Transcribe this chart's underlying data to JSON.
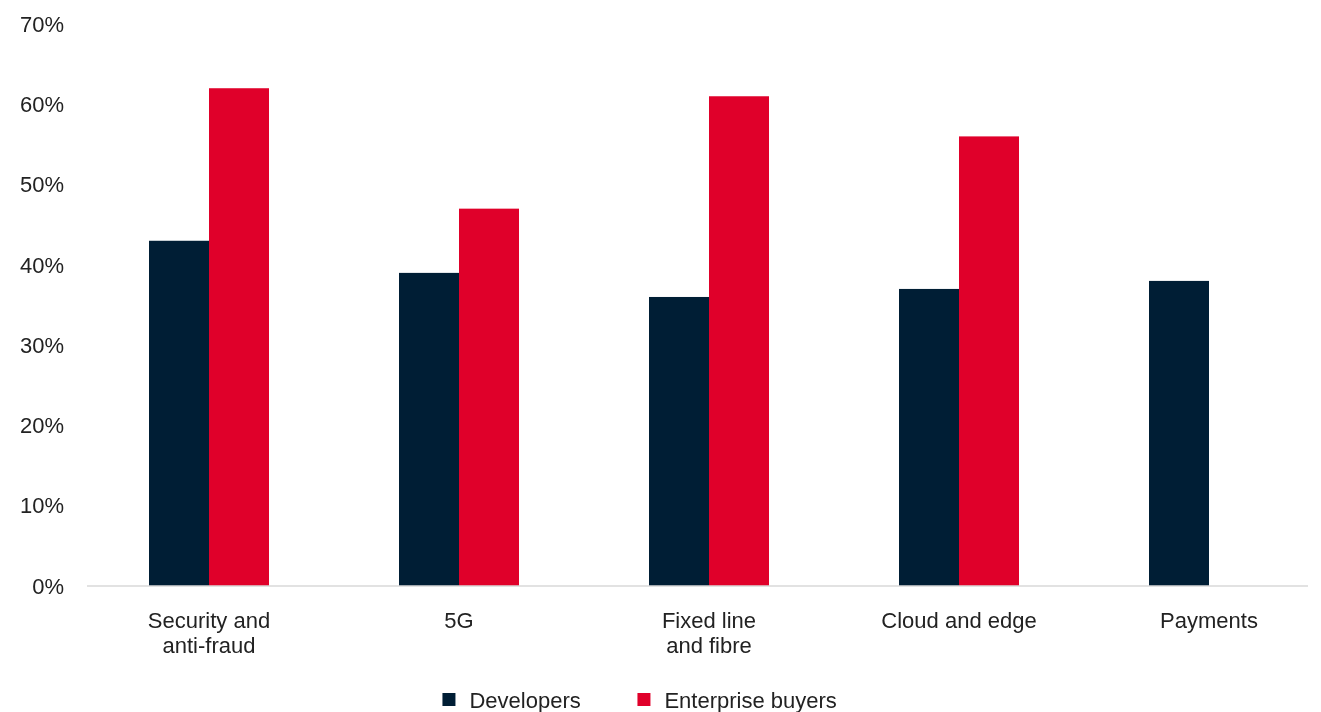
{
  "chart_data": {
    "type": "bar",
    "categories": [
      "Security and\nanti-fraud",
      "5G",
      "Fixed line\nand fibre",
      "Cloud and edge",
      "Payments"
    ],
    "series": [
      {
        "name": "Developers",
        "color": "#001e35",
        "values": [
          43,
          39,
          36,
          37,
          38
        ]
      },
      {
        "name": "Enterprise buyers",
        "color": "#e0002a",
        "values": [
          62,
          47,
          61,
          56,
          null
        ]
      }
    ],
    "ylim": [
      0,
      70
    ],
    "yticks": [
      {
        "value": 0,
        "label": "0%"
      },
      {
        "value": 10,
        "label": "10%"
      },
      {
        "value": 20,
        "label": "20%"
      },
      {
        "value": 30,
        "label": "30%"
      },
      {
        "value": 40,
        "label": "40%"
      },
      {
        "value": 50,
        "label": "50%"
      },
      {
        "value": 60,
        "label": "60%"
      },
      {
        "value": 70,
        "label": "70%"
      }
    ],
    "grid": false,
    "legend": "bottom"
  }
}
